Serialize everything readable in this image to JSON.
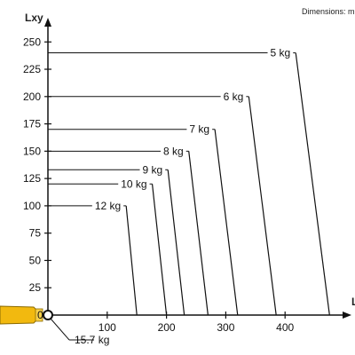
{
  "header_note": "Dimensions: m",
  "origin_marker": {
    "label": "0",
    "color": "#f2b90f",
    "icon": "boom-tip-icon"
  },
  "colors": {
    "axis": "#111111",
    "line": "#111111"
  },
  "chart_data": {
    "type": "line",
    "title": "",
    "ylabel": "Lxy",
    "xlabel": "L",
    "xlim": [
      0,
      490
    ],
    "ylim": [
      0,
      260
    ],
    "xticks": [
      100,
      200,
      300,
      400
    ],
    "yticks": [
      25,
      50,
      75,
      100,
      125,
      150,
      175,
      200,
      225,
      250
    ],
    "series": [
      {
        "name": "5 kg",
        "y": 240,
        "x_end": 475
      },
      {
        "name": "6 kg",
        "y": 200,
        "x_end": 385
      },
      {
        "name": "7 kg",
        "y": 170,
        "x_end": 320
      },
      {
        "name": "8 kg",
        "y": 150,
        "x_end": 270
      },
      {
        "name": "9 kg",
        "y": 133,
        "x_end": 230
      },
      {
        "name": "10 kg",
        "y": 120,
        "x_end": 200
      },
      {
        "name": "12 kg",
        "y": 100,
        "x_end": 150
      },
      {
        "name": "15.7 kg",
        "y": 0,
        "x_end": 0
      }
    ]
  }
}
